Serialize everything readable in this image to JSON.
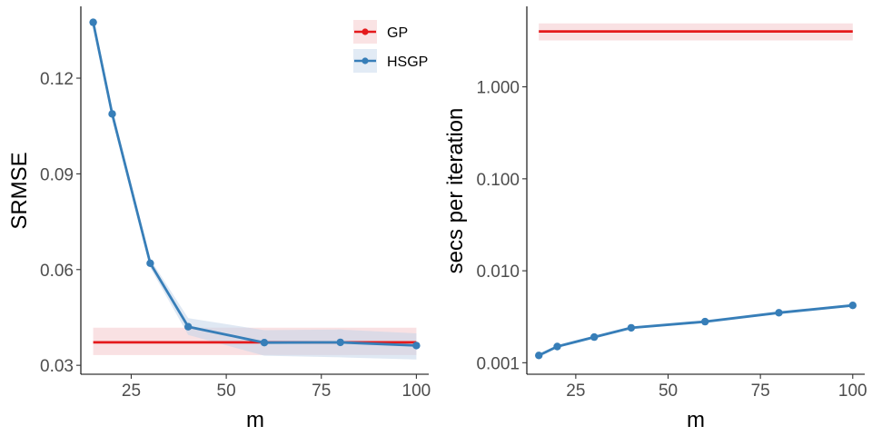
{
  "chart_data": [
    {
      "type": "line",
      "xlabel": "m",
      "ylabel": "SRMSE",
      "xlim": [
        11.75,
        103.25
      ],
      "ylim": [
        0.0272,
        0.1425
      ],
      "x_ticks": [
        25,
        50,
        75,
        100
      ],
      "x_tick_labels": [
        "25",
        "50",
        "75",
        "100"
      ],
      "y_ticks": [
        0.03,
        0.06,
        0.09,
        0.12
      ],
      "y_tick_labels": [
        "0.03",
        "0.06",
        "0.09",
        "0.12"
      ],
      "y_scale": "linear",
      "grid": false,
      "legend": {
        "placement": "top-right",
        "entries": [
          "GP",
          "HSGP"
        ]
      },
      "series": [
        {
          "name": "GP",
          "color": "#e41a1c",
          "band_color": "#f4c9cc",
          "markers": false,
          "x": [
            15,
            100
          ],
          "values": [
            0.0372,
            0.0372
          ],
          "lower": [
            0.0332,
            0.0332
          ],
          "upper": [
            0.0418,
            0.0418
          ]
        },
        {
          "name": "HSGP",
          "color": "#377eb8",
          "band_color": "#c5d6ea",
          "markers": true,
          "x": [
            15,
            20,
            30,
            40,
            60,
            80,
            100
          ],
          "values": [
            0.1375,
            0.1088,
            0.062,
            0.0421,
            0.0371,
            0.0372,
            0.0362
          ],
          "lower": [
            0.136,
            0.1072,
            0.0606,
            0.0395,
            0.033,
            0.0325,
            0.0318
          ],
          "upper": [
            0.1392,
            0.1105,
            0.0633,
            0.0448,
            0.041,
            0.0412,
            0.04
          ]
        }
      ]
    },
    {
      "type": "line",
      "xlabel": "m",
      "ylabel": "secs per iteration",
      "xlim": [
        11.75,
        103.25
      ],
      "ylim": [
        0.00075,
        7.5
      ],
      "x_ticks": [
        25,
        50,
        75,
        100
      ],
      "x_tick_labels": [
        "25",
        "50",
        "75",
        "100"
      ],
      "y_ticks": [
        0.001,
        0.01,
        0.1,
        1
      ],
      "y_tick_labels": [
        "0.001",
        "0.010",
        "0.100",
        "1.000"
      ],
      "y_scale": "log",
      "grid": false,
      "series": [
        {
          "name": "GP",
          "color": "#e41a1c",
          "band_color": "#f4c9cc",
          "markers": false,
          "x": [
            15,
            100
          ],
          "values": [
            4.0,
            4.0
          ],
          "lower": [
            3.2,
            3.2
          ],
          "upper": [
            4.9,
            4.9
          ]
        },
        {
          "name": "HSGP",
          "color": "#377eb8",
          "band_color": "#c5d6ea",
          "markers": true,
          "x": [
            15,
            20,
            30,
            40,
            60,
            80,
            100
          ],
          "values": [
            0.0012,
            0.0015,
            0.0019,
            0.0024,
            0.0028,
            0.0035,
            0.0042
          ],
          "lower": [
            0.00115,
            0.00145,
            0.00183,
            0.00232,
            0.0027,
            0.00338,
            0.00405
          ],
          "upper": [
            0.00125,
            0.00155,
            0.00197,
            0.00248,
            0.0029,
            0.00362,
            0.00435
          ]
        }
      ]
    }
  ]
}
